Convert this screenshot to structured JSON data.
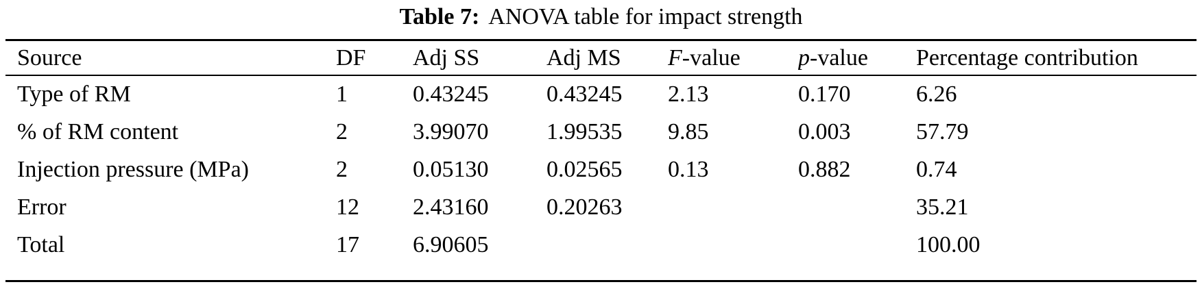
{
  "caption": {
    "label": "Table 7:",
    "text": "ANOVA table for impact strength"
  },
  "table": {
    "columns": [
      {
        "label": "Source"
      },
      {
        "label": "DF"
      },
      {
        "label": "Adj SS"
      },
      {
        "label": "Adj MS"
      },
      {
        "prefix_italic": "F",
        "label": "-value"
      },
      {
        "prefix_italic": "p",
        "label": "-value"
      },
      {
        "label": "Percentage contribution"
      }
    ],
    "rows": [
      [
        "Type of RM",
        "1",
        "0.43245",
        "0.43245",
        "2.13",
        "0.170",
        "6.26"
      ],
      [
        "% of RM content",
        "2",
        "3.99070",
        "1.99535",
        "9.85",
        "0.003",
        "57.79"
      ],
      [
        "Injection pressure (MPa)",
        "2",
        "0.05130",
        "0.02565",
        "0.13",
        "0.882",
        "0.74"
      ],
      [
        "Error",
        "12",
        "2.43160",
        "0.20263",
        "",
        "",
        "35.21"
      ],
      [
        "Total",
        "17",
        "6.90605",
        "",
        "",
        "",
        "100.00"
      ]
    ]
  },
  "chart_data": {
    "type": "table",
    "title": "Table 7: ANOVA table for impact strength",
    "columns": [
      "Source",
      "DF",
      "Adj SS",
      "Adj MS",
      "F-value",
      "p-value",
      "Percentage contribution"
    ],
    "rows": [
      [
        "Type of RM",
        1,
        0.43245,
        0.43245,
        2.13,
        0.17,
        6.26
      ],
      [
        "% of RM content",
        2,
        3.9907,
        1.99535,
        9.85,
        0.003,
        57.79
      ],
      [
        "Injection pressure (MPa)",
        2,
        0.0513,
        0.02565,
        0.13,
        0.882,
        0.74
      ],
      [
        "Error",
        12,
        2.4316,
        0.20263,
        null,
        null,
        35.21
      ],
      [
        "Total",
        17,
        6.90605,
        null,
        null,
        null,
        100.0
      ]
    ]
  }
}
